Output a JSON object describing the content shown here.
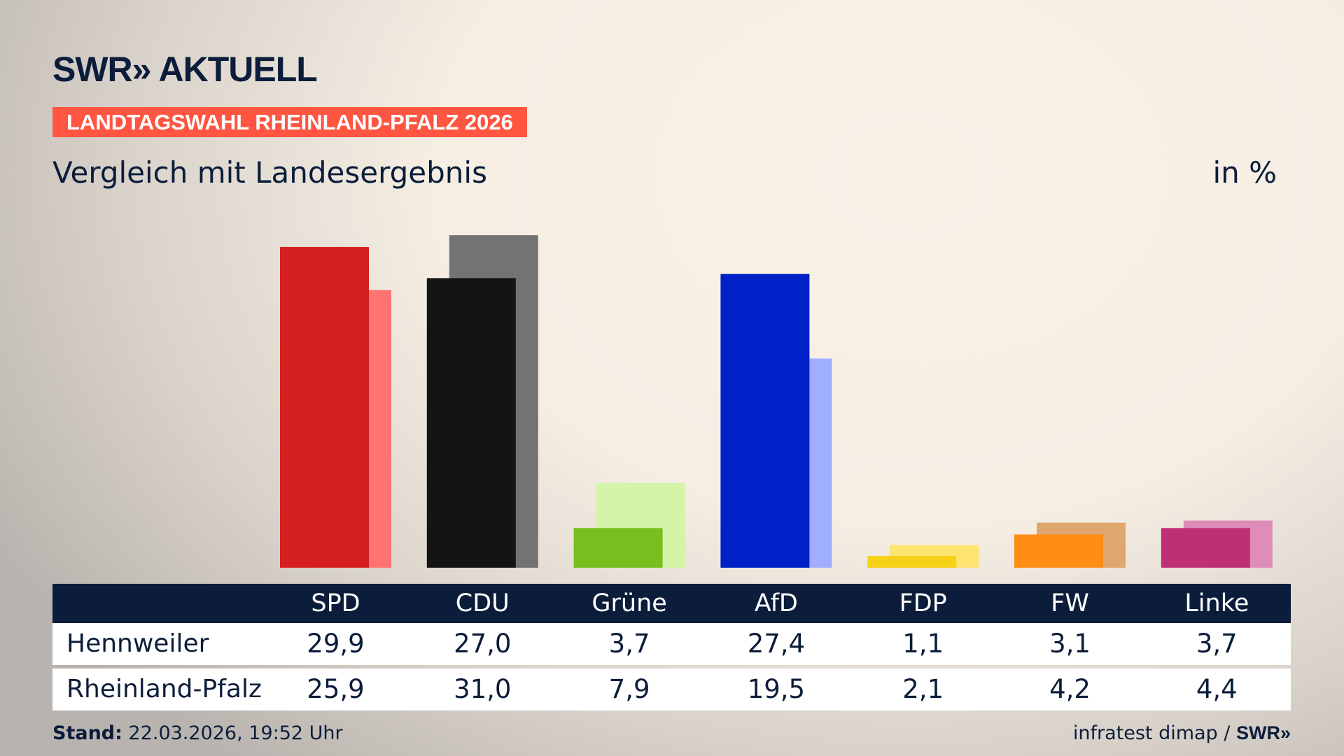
{
  "logo": "SWR» AKTUELL",
  "banner": "LANDTAGSWAHL RHEINLAND-PFALZ 2026",
  "subtitle": "Vergleich mit Landesergebnis",
  "unit": "in %",
  "footer": {
    "stand_label": "Stand:",
    "stand_value": "22.03.2026, 19:52 Uhr",
    "source": "infratest dimap /",
    "source_logo": "SWR»"
  },
  "chart_data": {
    "type": "bar",
    "categories": [
      "SPD",
      "CDU",
      "Grüne",
      "AfD",
      "FDP",
      "FW",
      "Linke"
    ],
    "series": [
      {
        "name": "Hennweiler",
        "values": [
          29.9,
          27.0,
          3.7,
          27.4,
          1.1,
          3.1,
          3.7
        ],
        "labels": [
          "29,9",
          "27,0",
          "3,7",
          "27,4",
          "1,1",
          "3,1",
          "3,7"
        ]
      },
      {
        "name": "Rheinland-Pfalz",
        "values": [
          25.9,
          31.0,
          7.9,
          19.5,
          2.1,
          4.2,
          4.4
        ],
        "labels": [
          "25,9",
          "31,0",
          "7,9",
          "19,5",
          "2,1",
          "4,2",
          "4,4"
        ]
      }
    ],
    "colors": {
      "primary": [
        "#d61f1f",
        "#141414",
        "#78be1e",
        "#0021c8",
        "#f7d117",
        "#ff8c14",
        "#be3075"
      ],
      "secondary": [
        "#ff7470",
        "#737373",
        "#d4f5a8",
        "#a0aeff",
        "#fde36f",
        "#dfa670",
        "#e08cb8"
      ]
    },
    "ylim": [
      0,
      31
    ]
  }
}
